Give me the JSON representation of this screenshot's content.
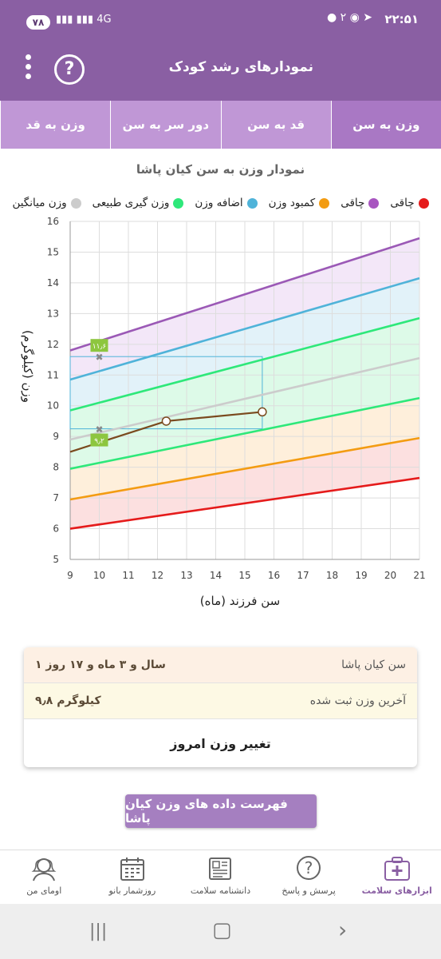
{
  "status": {
    "time": "۲۲:۵۱",
    "battery": "۷۸",
    "network": "4G",
    "notif_count": "۲"
  },
  "appbar": {
    "title": "نمودارهای رشد کودک"
  },
  "tabs": [
    {
      "label": "وزن به سن",
      "active": true
    },
    {
      "label": "قد به سن",
      "active": false
    },
    {
      "label": "دور سر به سن",
      "active": false
    },
    {
      "label": "وزن به قد",
      "active": false
    }
  ],
  "chart_title": "نمودار وزن به سن کیان پاشا",
  "legend": [
    {
      "label": "چاقی",
      "color": "#9b59b6"
    },
    {
      "label": "اضافه وزن",
      "color": "#4fb3d9"
    },
    {
      "label": "وزن گیری طبیعی",
      "color": "#2ee87a"
    },
    {
      "label": "وزن میانگین",
      "color": "#cccccc"
    },
    {
      "label": "لاغری",
      "color": "#e51b1b"
    },
    {
      "label": "کمبود وزن",
      "color": "#f39c12"
    }
  ],
  "legend_visible_order": [
    {
      "label": "لاغری",
      "color": "#e51b1b"
    },
    {
      "label": "چاقی",
      "color": "#a855c0"
    },
    {
      "label": "کمبود وزن",
      "color": "#f39c12"
    },
    {
      "label": "اضافه وزن",
      "color": "#4fb3d9"
    },
    {
      "label": "وزن گیری طبیعی",
      "color": "#2ee87a"
    },
    {
      "label": "وزن میانگین",
      "color": "#cccccc"
    }
  ],
  "chart_data": {
    "type": "line",
    "xlabel": "سن فرزند (ماه)",
    "ylabel": "وزن (کیلوگرم)",
    "xlim": [
      9,
      21
    ],
    "ylim": [
      5,
      16
    ],
    "xticks": [
      9,
      10,
      11,
      12,
      13,
      14,
      15,
      16,
      17,
      18,
      19,
      20,
      21
    ],
    "yticks": [
      5,
      6,
      7,
      8,
      9,
      10,
      11,
      12,
      13,
      14,
      15,
      16
    ],
    "series": [
      {
        "color": "#e51b1b",
        "x": [
          9,
          21
        ],
        "y": [
          6.0,
          7.65
        ]
      },
      {
        "color": "#f39c12",
        "x": [
          9,
          21
        ],
        "y": [
          6.95,
          8.95
        ]
      },
      {
        "color": "#2ee87a",
        "x": [
          9,
          21
        ],
        "y": [
          7.95,
          10.25
        ]
      },
      {
        "color": "#cccccc",
        "x": [
          9,
          21
        ],
        "y": [
          8.9,
          11.55
        ]
      },
      {
        "color": "#2ee87a",
        "x": [
          9,
          21
        ],
        "y": [
          9.85,
          12.85
        ]
      },
      {
        "color": "#4fb3d9",
        "x": [
          9,
          21
        ],
        "y": [
          10.85,
          14.15
        ]
      },
      {
        "color": "#9b59b6",
        "x": [
          9,
          21
        ],
        "y": [
          11.8,
          15.45
        ]
      },
      {
        "color": "#7a4a1e",
        "x": [
          9,
          12.3,
          15.6
        ],
        "y": [
          8.5,
          9.5,
          9.8
        ]
      }
    ],
    "bands": [
      {
        "from": 0,
        "to": 1,
        "color": "#fbd5d5"
      },
      {
        "from": 1,
        "to": 2,
        "color": "#fdeacf"
      },
      {
        "from": 2,
        "to": 4,
        "color": "#d2f8e0"
      },
      {
        "from": 4,
        "to": 5,
        "color": "#d8eef7"
      },
      {
        "from": 5,
        "to": 6,
        "color": "#efdff5"
      }
    ],
    "markers": [
      {
        "x": 10,
        "y": 11.6,
        "label": "۱۱٫۶"
      },
      {
        "x": 10,
        "y": 9.25,
        "label": "۹٫۲"
      }
    ],
    "reference_box": {
      "x_from": 9,
      "x_to": 15.6,
      "y_from": 9.25,
      "y_to": 11.6
    }
  },
  "info": {
    "age_label": "سن کیان پاشا",
    "age_value": "۱ سال و ۳ ماه و ۱۷ روز",
    "weight_label": "آخرین وزن ثبت شده",
    "weight_value": "۹٫۸ کیلوگرم",
    "change_button": "تغییر وزن امروز"
  },
  "list_button": "فهرست داده های وزن کیان پاشا",
  "bottom_nav": [
    {
      "label": "ابزارهای سلامت",
      "icon": "health-kit-icon",
      "active": true
    },
    {
      "label": "پرسش و پاسخ",
      "icon": "question-icon",
      "active": false
    },
    {
      "label": "دانشنامه سلامت",
      "icon": "newspaper-icon",
      "active": false
    },
    {
      "label": "روزشمار بانو",
      "icon": "calendar-icon",
      "active": false
    },
    {
      "label": "اومای من",
      "icon": "profile-icon",
      "active": false
    }
  ]
}
